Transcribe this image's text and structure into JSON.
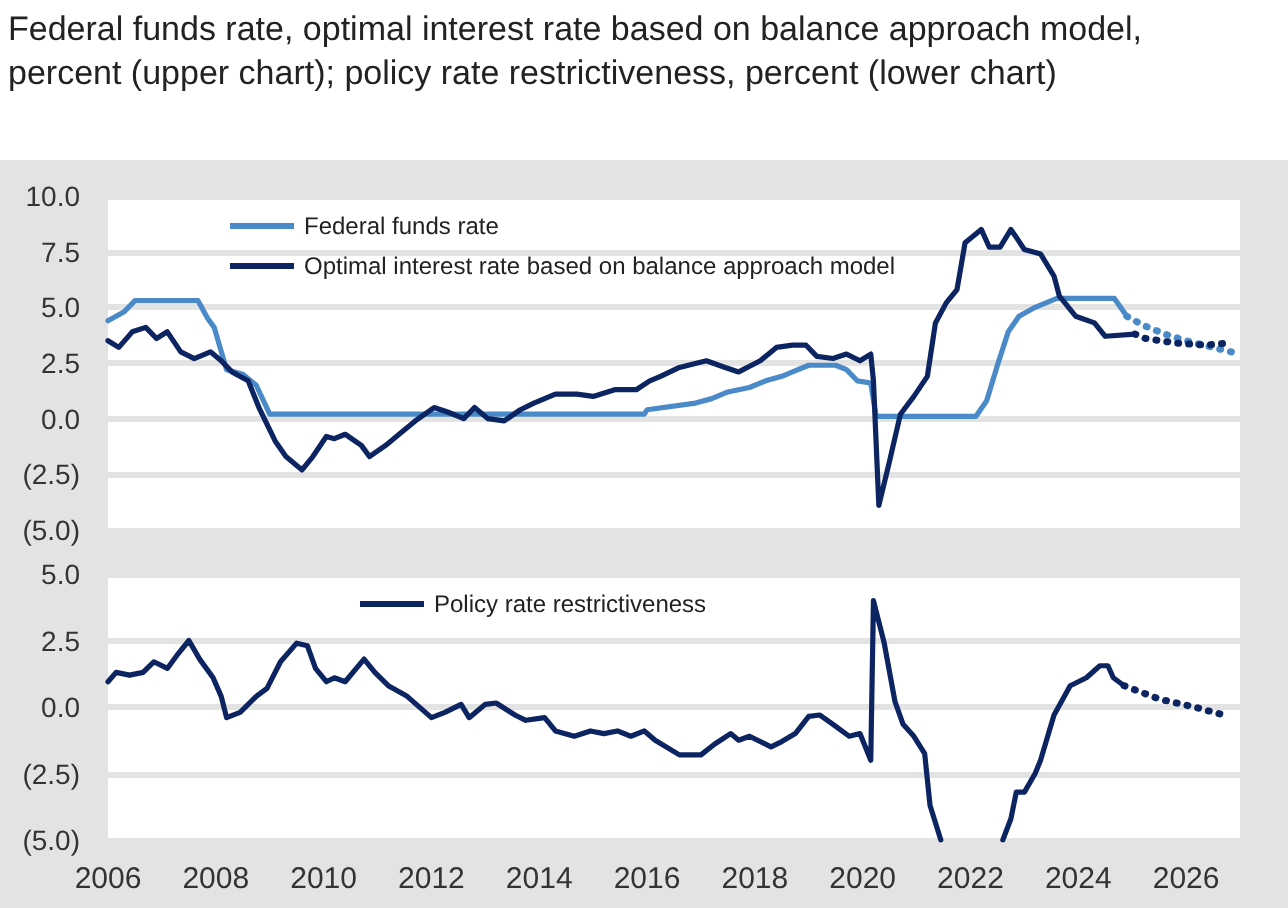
{
  "chart_data": [
    {
      "type": "line",
      "title": "Federal funds rate, optimal interest rate based on balance approach model, percent (upper chart); policy rate restrictiveness, percent (lower chart)",
      "xlim": [
        2006,
        2027
      ],
      "xticks": [
        2006,
        2008,
        2010,
        2012,
        2014,
        2016,
        2018,
        2020,
        2022,
        2024,
        2026
      ],
      "ylim": [
        -5,
        10
      ],
      "yticks": [
        {
          "value": -5,
          "label": "(5.0)"
        },
        {
          "value": -2.5,
          "label": "(2.5)"
        },
        {
          "value": 0,
          "label": "0.0"
        },
        {
          "value": 2.5,
          "label": "2.5"
        },
        {
          "value": 5,
          "label": "5.0"
        },
        {
          "value": 7.5,
          "label": "7.5"
        },
        {
          "value": 10,
          "label": "10.0"
        }
      ],
      "tick_labels": "y",
      "grid": "y",
      "legend": "top left",
      "series": [
        {
          "name": "Federal funds rate",
          "color": "#4a8ac8",
          "x": [
            2006.0,
            2006.3,
            2006.5,
            2007.67,
            2007.85,
            2007.97,
            2008.2,
            2008.5,
            2008.75,
            2009.0,
            2015.95,
            2016.0,
            2016.9,
            2017.2,
            2017.5,
            2017.9,
            2018.2,
            2018.5,
            2018.8,
            2019.0,
            2019.5,
            2019.7,
            2019.9,
            2020.15,
            2020.25,
            2022.1,
            2022.3,
            2022.5,
            2022.7,
            2022.9,
            2023.2,
            2023.5,
            2023.6,
            2024.67,
            2024.9
          ],
          "values": [
            4.4,
            4.8,
            5.3,
            5.3,
            4.5,
            4.1,
            2.2,
            2.0,
            1.5,
            0.2,
            0.2,
            0.4,
            0.7,
            0.9,
            1.2,
            1.4,
            1.7,
            1.9,
            2.2,
            2.4,
            2.4,
            2.2,
            1.7,
            1.6,
            0.1,
            0.1,
            0.8,
            2.4,
            3.9,
            4.6,
            5.0,
            5.3,
            5.4,
            5.4,
            4.6
          ]
        },
        {
          "name": "Optimal interest rate based on balance approach model",
          "color": "#0c2461",
          "x": [
            2006.0,
            2006.2,
            2006.45,
            2006.7,
            2006.9,
            2007.1,
            2007.35,
            2007.6,
            2007.9,
            2008.1,
            2008.3,
            2008.6,
            2008.8,
            2009.1,
            2009.3,
            2009.6,
            2009.8,
            2010.05,
            2010.2,
            2010.4,
            2010.7,
            2010.85,
            2011.15,
            2011.4,
            2011.7,
            2012.05,
            2012.3,
            2012.6,
            2012.8,
            2013.05,
            2013.35,
            2013.65,
            2013.9,
            2014.3,
            2014.7,
            2015.0,
            2015.4,
            2015.8,
            2016.05,
            2016.25,
            2016.6,
            2017.1,
            2017.45,
            2017.7,
            2018.1,
            2018.4,
            2018.7,
            2018.95,
            2019.15,
            2019.45,
            2019.7,
            2019.95,
            2020.15,
            2020.2,
            2020.3,
            2020.5,
            2020.7,
            2020.95,
            2021.2,
            2021.35,
            2021.55,
            2021.75,
            2021.9,
            2022.2,
            2022.35,
            2022.55,
            2022.75,
            2023.0,
            2023.3,
            2023.55,
            2023.65,
            2023.95,
            2024.3,
            2024.5,
            2025.05
          ],
          "values": [
            3.5,
            3.2,
            3.9,
            4.1,
            3.6,
            3.9,
            3.0,
            2.7,
            3.0,
            2.6,
            2.1,
            1.7,
            0.5,
            -1.0,
            -1.7,
            -2.3,
            -1.7,
            -0.8,
            -0.9,
            -0.7,
            -1.2,
            -1.7,
            -1.2,
            -0.7,
            -0.1,
            0.5,
            0.3,
            0.0,
            0.5,
            0.0,
            -0.1,
            0.4,
            0.7,
            1.1,
            1.1,
            1.0,
            1.3,
            1.3,
            1.7,
            1.9,
            2.3,
            2.6,
            2.3,
            2.1,
            2.6,
            3.2,
            3.3,
            3.3,
            2.8,
            2.7,
            2.9,
            2.6,
            2.9,
            1.7,
            -3.9,
            -1.9,
            0.2,
            1.0,
            1.9,
            4.3,
            5.2,
            5.8,
            7.9,
            8.5,
            7.7,
            7.7,
            8.5,
            7.6,
            7.4,
            6.4,
            5.5,
            4.6,
            4.3,
            3.7,
            3.8
          ]
        },
        {
          "color": "#4a8ac8",
          "line_style": "dotted",
          "x": [
            2024.9,
            2025.2,
            2025.6,
            2026.0,
            2026.5,
            2027.0
          ],
          "values": [
            4.6,
            4.2,
            3.8,
            3.5,
            3.2,
            2.9
          ]
        },
        {
          "color": "#0c2461",
          "line_style": "dotted",
          "x": [
            2025.05,
            2025.25,
            2025.8,
            2026.35,
            2026.8
          ],
          "values": [
            3.8,
            3.6,
            3.4,
            3.3,
            3.4
          ]
        }
      ]
    },
    {
      "type": "line",
      "xlim": [
        2006,
        2027
      ],
      "xticks": [
        2006,
        2008,
        2010,
        2012,
        2014,
        2016,
        2018,
        2020,
        2022,
        2024,
        2026
      ],
      "ylim": [
        -5,
        5
      ],
      "yticks": [
        {
          "value": -5,
          "label": "(5.0)"
        },
        {
          "value": -2.5,
          "label": "(2.5)"
        },
        {
          "value": 0,
          "label": "0.0"
        },
        {
          "value": 2.5,
          "label": "2.5"
        },
        {
          "value": 5,
          "label": "5.0"
        }
      ],
      "grid": "y",
      "legend": "top left",
      "series": [
        {
          "name": "Policy rate restrictiveness",
          "color": "#0c2461",
          "x": [
            2006.0,
            2006.15,
            2006.4,
            2006.65,
            2006.85,
            2007.1,
            2007.3,
            2007.5,
            2007.7,
            2007.95,
            2008.1,
            2008.2,
            2008.45,
            2008.75,
            2008.95,
            2009.2,
            2009.5,
            2009.7,
            2009.85,
            2010.05,
            2010.2,
            2010.4,
            2010.75,
            2010.95,
            2011.2,
            2011.55,
            2012.0,
            2012.25,
            2012.55,
            2012.7,
            2013.0,
            2013.2,
            2013.55,
            2013.75,
            2014.1,
            2014.3,
            2014.65,
            2014.95,
            2015.2,
            2015.45,
            2015.7,
            2015.95,
            2016.15,
            2016.6,
            2017.0,
            2017.25,
            2017.55,
            2017.7,
            2017.9,
            2018.3,
            2018.5,
            2018.75,
            2019.0,
            2019.2,
            2019.45,
            2019.75,
            2019.95,
            2020.15,
            2020.2,
            2020.4,
            2020.6,
            2020.75,
            2020.95,
            2021.15,
            2021.25,
            2021.45,
            2022.0,
            2022.6,
            2022.75,
            2022.85,
            2023.0,
            2023.2,
            2023.3,
            2023.55,
            2023.85,
            2024.15,
            2024.4,
            2024.55,
            2024.65,
            2024.85
          ],
          "values": [
            0.95,
            1.3,
            1.2,
            1.3,
            1.7,
            1.45,
            2.0,
            2.5,
            1.8,
            1.1,
            0.4,
            -0.4,
            -0.2,
            0.4,
            0.7,
            1.7,
            2.4,
            2.3,
            1.45,
            0.95,
            1.1,
            0.95,
            1.8,
            1.3,
            0.8,
            0.4,
            -0.4,
            -0.2,
            0.1,
            -0.4,
            0.1,
            0.15,
            -0.3,
            -0.5,
            -0.4,
            -0.9,
            -1.1,
            -0.9,
            -1.0,
            -0.9,
            -1.1,
            -0.9,
            -1.25,
            -1.8,
            -1.8,
            -1.4,
            -1.0,
            -1.25,
            -1.1,
            -1.5,
            -1.3,
            -1.0,
            -0.35,
            -0.3,
            -0.65,
            -1.1,
            -1.0,
            -2.0,
            4.0,
            2.4,
            0.2,
            -0.65,
            -1.1,
            -1.75,
            -3.7,
            -5.0,
            null,
            -5.0,
            -4.2,
            -3.2,
            -3.2,
            -2.5,
            -2.0,
            -0.3,
            0.8,
            1.1,
            1.55,
            1.55,
            1.1,
            0.8
          ]
        },
        {
          "color": "#0c2461",
          "line_style": "dotted",
          "x": [
            2024.85,
            2025.5,
            2026.15,
            2026.7
          ],
          "values": [
            0.8,
            0.3,
            0.0,
            -0.3
          ]
        }
      ]
    }
  ]
}
